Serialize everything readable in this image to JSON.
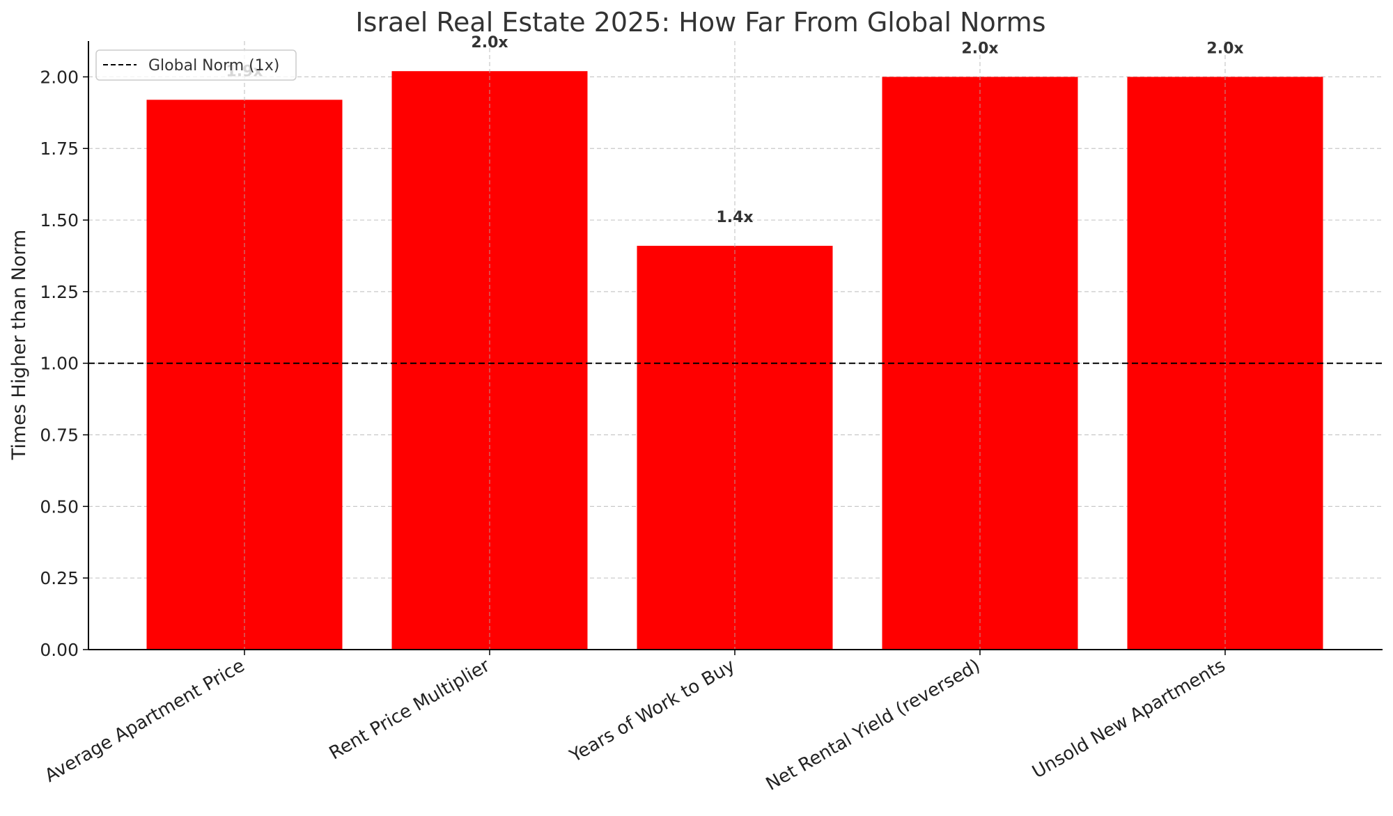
{
  "chart_data": {
    "type": "bar",
    "title": "Israel Real Estate 2025: How Far From Global Norms",
    "xlabel": "",
    "ylabel": "Times Higher than Norm",
    "categories": [
      "Average Apartment Price",
      "Rent Price Multiplier",
      "Years of Work to Buy",
      "Net Rental Yield (reversed)",
      "Unsold New Apartments"
    ],
    "values": [
      1.92,
      2.02,
      1.41,
      2.0,
      2.0
    ],
    "data_labels": [
      "1.9x",
      "2.0x",
      "1.4x",
      "2.0x",
      "2.0x"
    ],
    "ylim": [
      0,
      2.125
    ],
    "yticks": [
      "0.00",
      "0.25",
      "0.50",
      "0.75",
      "1.00",
      "1.25",
      "1.50",
      "1.75",
      "2.00"
    ],
    "bar_color": "#ff0000",
    "grid": true,
    "reference_line": {
      "value": 1.0,
      "label": "Global Norm (1x)",
      "style": "dashed",
      "color": "#000000"
    },
    "legend_position": "upper-left"
  }
}
